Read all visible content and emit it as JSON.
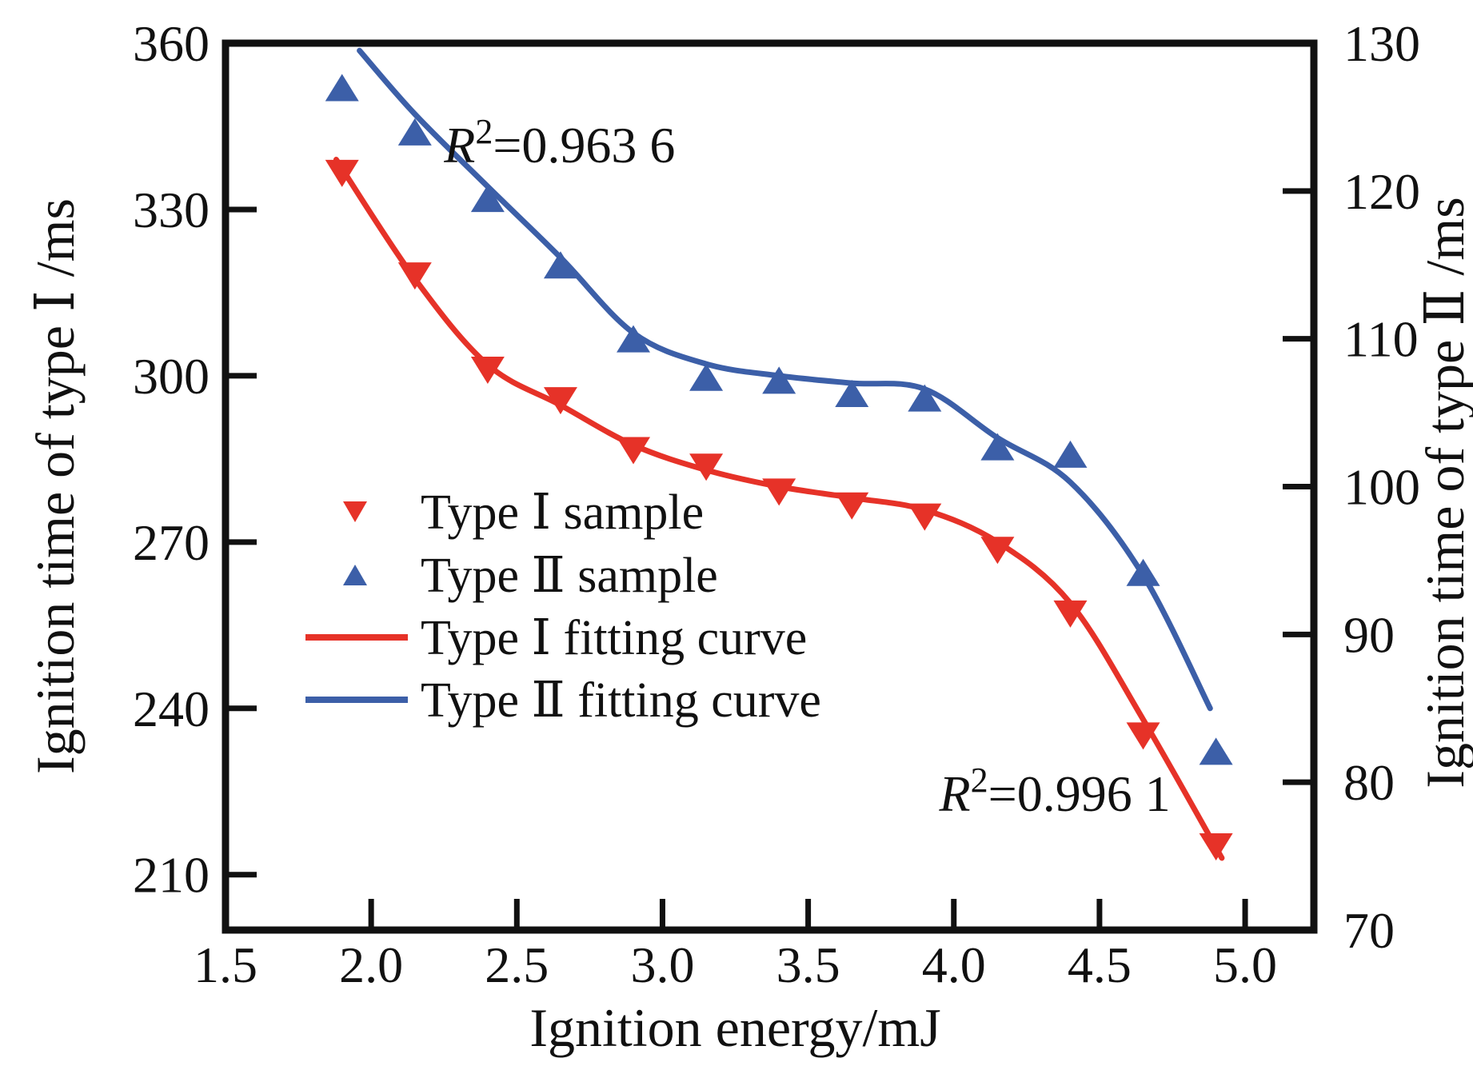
{
  "figure": {
    "background": "#ffffff",
    "text_color": "#111111",
    "accent_red": "#e63228",
    "accent_blue": "#3c5fa8"
  },
  "chart_data": {
    "type": "scatter",
    "title": "",
    "xlabel": "Ignition energy/mJ",
    "x_ticks": [
      1.5,
      2.0,
      2.5,
      3.0,
      3.5,
      4.0,
      4.5,
      5.0
    ],
    "x_min": 1.5,
    "x_axis_end": 5.23,
    "grid": false,
    "legend_position": "inside-center-left",
    "y_left": {
      "label": "Ignition time of type Ⅰ /ms",
      "ticks": [
        210,
        240,
        270,
        300,
        330,
        360
      ],
      "top_value": 360,
      "bottom_value": 200
    },
    "y_right": {
      "label": "Ignition time of type Ⅱ /ms",
      "ticks": [
        70,
        80,
        90,
        100,
        110,
        120,
        130
      ],
      "top_value": 130,
      "bottom_value": 70
    },
    "x": [
      1.9,
      2.15,
      2.4,
      2.65,
      2.9,
      3.15,
      3.4,
      3.65,
      3.9,
      4.15,
      4.4,
      4.65,
      4.9
    ],
    "series": [
      {
        "name": "Type Ⅰ sample",
        "axis": "left",
        "marker": "triangle-down",
        "color": "#e63228",
        "values": [
          336.5,
          318,
          301,
          295.5,
          286.5,
          283.5,
          279,
          276.5,
          274.5,
          268.5,
          257,
          235,
          215
        ]
      },
      {
        "name": "Type Ⅱ sample",
        "axis": "right",
        "marker": "triangle-up",
        "color": "#3c5fa8",
        "values": [
          127,
          124,
          119.5,
          115,
          110,
          107.4,
          107.2,
          106.3,
          106,
          102.7,
          102.2,
          94.2,
          82.1
        ]
      }
    ],
    "fits": [
      {
        "name": "Type Ⅰ fitting curve",
        "axis": "left",
        "color": "#e63228",
        "points": [
          [
            1.88,
            339
          ],
          [
            2.15,
            317.5
          ],
          [
            2.4,
            302
          ],
          [
            2.65,
            294.7
          ],
          [
            2.9,
            287.5
          ],
          [
            3.15,
            283
          ],
          [
            3.4,
            280
          ],
          [
            3.65,
            278
          ],
          [
            3.9,
            275.8
          ],
          [
            4.15,
            270
          ],
          [
            4.4,
            259
          ],
          [
            4.65,
            238
          ],
          [
            4.92,
            213
          ]
        ]
      },
      {
        "name": "Type Ⅱ fitting curve",
        "axis": "right",
        "color": "#3c5fa8",
        "points": [
          [
            1.96,
            129.5
          ],
          [
            2.15,
            125.2
          ],
          [
            2.4,
            120.3
          ],
          [
            2.65,
            115.5
          ],
          [
            2.9,
            110.4
          ],
          [
            3.15,
            108.3
          ],
          [
            3.4,
            107.5
          ],
          [
            3.65,
            107
          ],
          [
            3.9,
            106.6
          ],
          [
            4.15,
            103.3
          ],
          [
            4.4,
            100.3
          ],
          [
            4.65,
            94
          ],
          [
            4.88,
            85
          ]
        ]
      }
    ],
    "annotations": [
      {
        "id": "r2-type2",
        "series": "Type Ⅱ fitting curve",
        "base": "R",
        "sup": "2",
        "rest": "=0.963 6",
        "x": 2.25,
        "y_left_units": 338.5
      },
      {
        "id": "r2-type1",
        "series": "Type Ⅰ fitting curve",
        "base": "R",
        "sup": "2",
        "rest": "=0.996 1",
        "x": 3.95,
        "y_left_units": 221.5
      }
    ],
    "legend_items": [
      {
        "symbol": "triangle-down",
        "color": "#e63228",
        "label": "Type Ⅰ sample"
      },
      {
        "symbol": "triangle-up",
        "color": "#3c5fa8",
        "label": "Type Ⅱ sample"
      },
      {
        "symbol": "line",
        "color": "#e63228",
        "label": "Type Ⅰ fitting curve"
      },
      {
        "symbol": "line",
        "color": "#3c5fa8",
        "label": "Type Ⅱ fitting curve"
      }
    ]
  }
}
